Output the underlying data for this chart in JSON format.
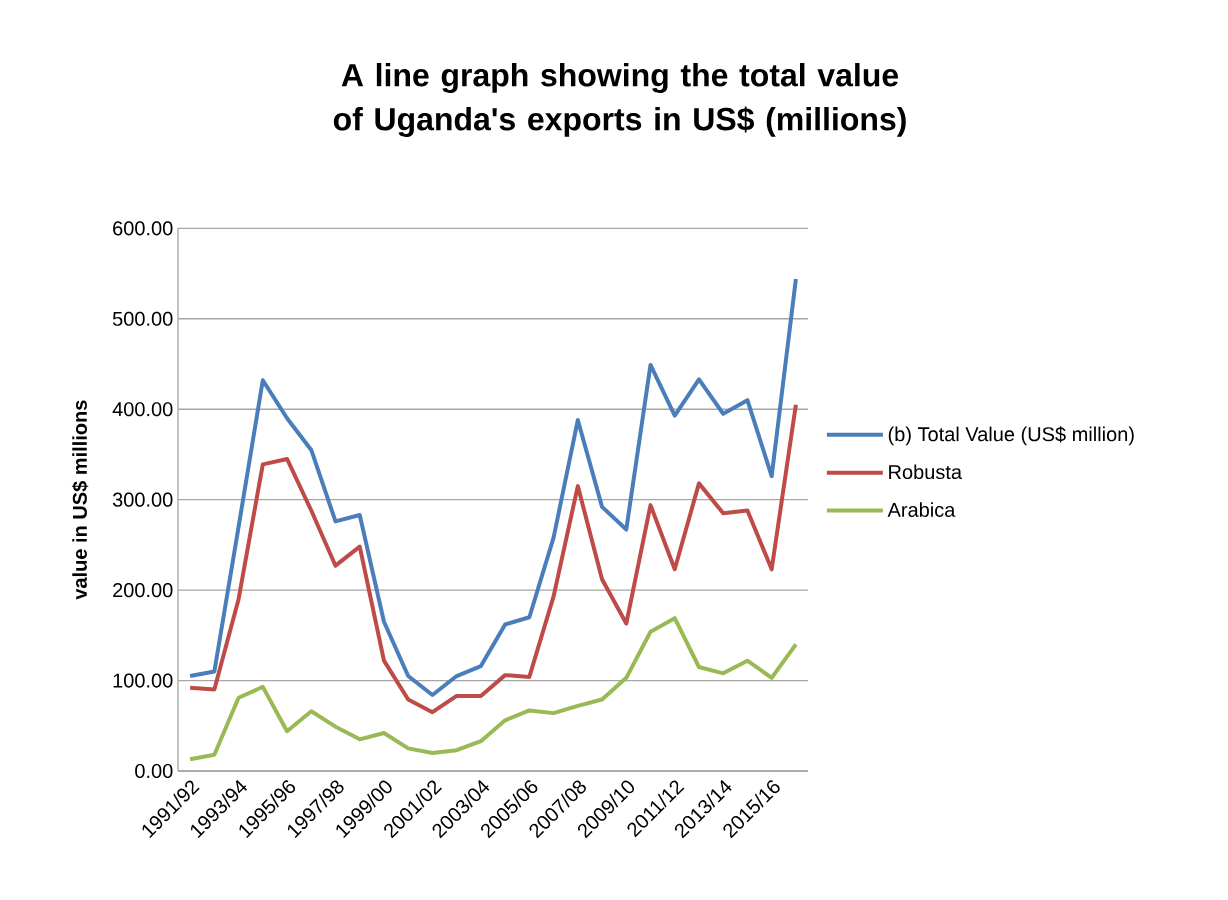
{
  "chart_data": {
    "type": "line",
    "title": "A line graph showing the total value of Uganda's exports in US$ (millions)",
    "ylabel": "value in US$ millions",
    "categories": [
      "1991/92",
      null,
      "1993/94",
      null,
      "1995/96",
      null,
      "1997/98",
      null,
      "1999/00",
      null,
      "2001/02",
      null,
      "2003/04",
      null,
      "2005/06",
      null,
      "2007/08",
      null,
      "2009/10",
      null,
      "2011/12",
      null,
      "2013/14",
      null,
      "2015/16",
      null
    ],
    "series": [
      {
        "name": "(b) Total Value (US$ million)",
        "color": "#4a7ebb",
        "values": [
          105,
          110,
          270,
          432,
          390,
          355,
          276,
          283,
          165,
          105,
          84,
          105,
          116,
          162,
          170,
          258,
          388,
          292,
          267,
          449,
          393,
          433,
          395,
          410,
          326,
          544
        ]
      },
      {
        "name": "Robusta",
        "color": "#be4b48",
        "values": [
          92,
          90,
          190,
          339,
          345,
          288,
          227,
          248,
          122,
          79,
          65,
          83,
          83,
          106,
          104,
          193,
          315,
          212,
          163,
          294,
          223,
          318,
          285,
          288,
          223,
          405
        ]
      },
      {
        "name": "Arabica",
        "color": "#98b954",
        "values": [
          13,
          18,
          81,
          93,
          44,
          66,
          49,
          35,
          42,
          25,
          20,
          23,
          33,
          56,
          67,
          64,
          72,
          79,
          103,
          154,
          169,
          115,
          108,
          122,
          103,
          140
        ]
      }
    ],
    "ylim": [
      0,
      600
    ],
    "yticks": [
      {
        "value": 0,
        "label": "0.00"
      },
      {
        "value": 100,
        "label": "100.00"
      },
      {
        "value": 200,
        "label": "200.00"
      },
      {
        "value": 300,
        "label": "300.00"
      },
      {
        "value": 400,
        "label": "400.00"
      },
      {
        "value": 500,
        "label": "500.00"
      },
      {
        "value": 600,
        "label": "600.00"
      }
    ],
    "grid": "y",
    "legend": "right",
    "marker": "none",
    "line_style": "solid"
  }
}
